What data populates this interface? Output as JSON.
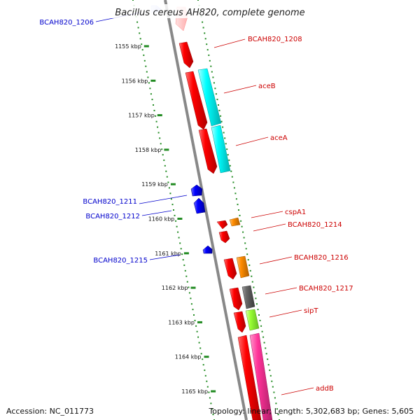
{
  "title": "Bacillus cereus AH820, complete genome",
  "footer": {
    "accession": "Accession: NC_011773",
    "info": "Topology: linear; Length: 5,302,683 bp; Genes: 5,605"
  },
  "ticks": [
    "1155 kbp",
    "1156 kbp",
    "1157 kbp",
    "1158 kbp",
    "1159 kbp",
    "1160 kbp",
    "1161 kbp",
    "1162 kbp",
    "1163 kbp",
    "1164 kbp",
    "1165 kbp"
  ],
  "left_labels": [
    "BCAH820_1206",
    "BCAH820_1211",
    "BCAH820_1212",
    "BCAH820_1215"
  ],
  "right_labels": [
    "BCAH820_1208",
    "aceB",
    "aceA",
    "cspA1",
    "BCAH820_1214",
    "BCAH820_1216",
    "BCAH820_1217",
    "sipT",
    "addB"
  ],
  "colors": {
    "reverse_gene": "#ff0000",
    "forward_gene": "#0000ff",
    "aceB_aceA": "#00ffff",
    "orange": "#ff8c00",
    "gray": "#666666",
    "sipT": "#99ff33",
    "addB": "#ff3399",
    "tick_marks": "#228b22",
    "left_label_text": "#0000cc",
    "right_label_text": "#cc0000",
    "backbone": "#888888"
  }
}
